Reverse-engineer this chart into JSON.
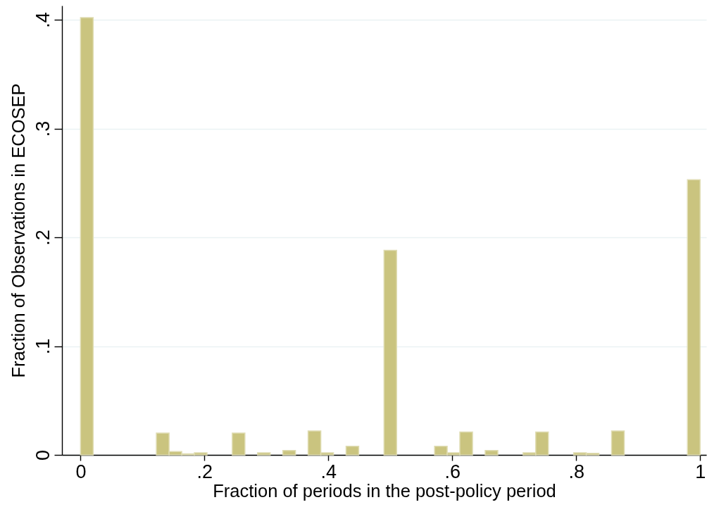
{
  "chart_data": {
    "type": "histogram",
    "xlabel": "Fraction of periods in the post-policy period",
    "ylabel": "Fraction of Observations in ECOSEP",
    "bins": [
      0,
      0.0204,
      0.0408,
      0.0612,
      0.0816,
      0.102,
      0.1224,
      0.1429,
      0.1633,
      0.1837,
      0.2041,
      0.2245,
      0.2449,
      0.2653,
      0.2857,
      0.3061,
      0.3265,
      0.3469,
      0.3673,
      0.3878,
      0.4082,
      0.4286,
      0.449,
      0.4694,
      0.4898,
      0.5102,
      0.5306,
      0.551,
      0.5714,
      0.5918,
      0.6122,
      0.6327,
      0.6531,
      0.6735,
      0.6939,
      0.7143,
      0.7347,
      0.7551,
      0.7755,
      0.7959,
      0.8163,
      0.8367,
      0.8571,
      0.8776,
      0.898,
      0.9184,
      0.9388,
      0.9592,
      0.9796,
      1
    ],
    "values": [
      0.402,
      0,
      0,
      0,
      0,
      0,
      0.02,
      0.003,
      0.001,
      0.002,
      0,
      0,
      0.02,
      0,
      0.002,
      0,
      0.004,
      0,
      0.022,
      0.002,
      0,
      0.008,
      0,
      0,
      0.188,
      0,
      0,
      0,
      0.008,
      0.002,
      0.021,
      0,
      0.004,
      0,
      0,
      0.002,
      0.021,
      0,
      0,
      0.002,
      0.0015,
      0,
      0.022,
      0,
      0,
      0,
      0,
      0,
      0.253
    ],
    "color": "#cac47f",
    "xlim": [
      -0.03,
      1.01
    ],
    "ylim": [
      0,
      0.413
    ],
    "xticks": [
      0,
      {
        "value": 0.2,
        "label": ".2"
      },
      {
        "value": 0.4,
        "label": ".4"
      },
      {
        "value": 0.6,
        "label": ".6"
      },
      {
        "value": 0.8,
        "label": ".8"
      },
      1
    ],
    "yticks": [
      0,
      {
        "value": 0.1,
        "label": ".1"
      },
      {
        "value": 0.2,
        "label": ".2"
      },
      {
        "value": 0.3,
        "label": ".3"
      },
      {
        "value": 0.4,
        "label": ".4"
      }
    ],
    "grid": "y"
  }
}
